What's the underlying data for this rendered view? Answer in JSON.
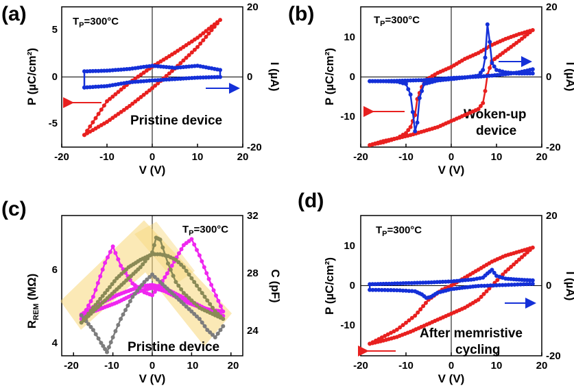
{
  "colors": {
    "red": "#e8201f",
    "blue": "#1430d8",
    "magenta": "#ef27ef",
    "gray": "#7d7d7d",
    "olive": "#8a8a56",
    "highlight": "#f7d77a"
  },
  "chart_data": [
    {
      "type": "line",
      "panel": "(a)",
      "tp_main": "T",
      "tp_sub": "P",
      "tp_tail": "=300°C",
      "xlabel": "V (V)",
      "ylabel_left": "P (µC/cm²)",
      "ylabel_right": "I (µA)",
      "xlim": [
        -20,
        20
      ],
      "ylim_left": [
        -7.5,
        7.5
      ],
      "ylim_right": [
        -20,
        20
      ],
      "xticks": [
        "-20",
        "-10",
        "0",
        "10",
        "20"
      ],
      "yticks_left": [
        "5",
        "0",
        "-5"
      ],
      "yticks_right": [
        "20",
        "0",
        "-20"
      ],
      "annotations": [
        "Pristine device"
      ],
      "series": [
        {
          "name": "P",
          "axis": "left",
          "color": "red",
          "x": [
            -15,
            -10,
            -5,
            0,
            5,
            10,
            15,
            10,
            5,
            0,
            -5,
            -10,
            -15
          ],
          "y": [
            -6.2,
            -4.8,
            -3.1,
            -1.2,
            0.9,
            3.2,
            6.1,
            4.2,
            2.6,
            1.1,
            -0.6,
            -2.6,
            -6.2
          ]
        },
        {
          "name": "I",
          "axis": "right",
          "color": "blue",
          "x": [
            -15,
            -10,
            -5,
            0,
            5,
            10,
            15,
            15,
            10,
            5,
            0,
            -5,
            -10,
            -15,
            -15
          ],
          "y": [
            -3.0,
            -2.6,
            -1.5,
            -1.0,
            -0.6,
            -0.2,
            0.0,
            2.0,
            3.2,
            2.6,
            3.2,
            2.3,
            1.8,
            1.6,
            -3.0
          ]
        }
      ]
    },
    {
      "type": "line",
      "panel": "(b)",
      "tp_main": "T",
      "tp_sub": "P",
      "tp_tail": "=300°C",
      "xlabel": "V (V)",
      "ylabel_left": "P (µC/cm²)",
      "ylabel_right": "I (µA)",
      "xlim": [
        -20,
        20
      ],
      "ylim_left": [
        -15,
        20
      ],
      "ylim_right": [
        -20,
        20
      ],
      "xticks": [
        "-20",
        "-10",
        "0",
        "10",
        "20"
      ],
      "yticks_left": [
        "10",
        "0",
        "-10"
      ],
      "yticks_right": [
        "20",
        "0",
        "-20"
      ],
      "annotations": [
        "Woken-up",
        "device"
      ],
      "series": [
        {
          "name": "P",
          "axis": "left",
          "color": "red",
          "x": [
            -18,
            -15,
            -12,
            -10,
            -9,
            -8,
            -7.5,
            -6,
            -3,
            0,
            3,
            6,
            9,
            12,
            15,
            18,
            15,
            12,
            9,
            8,
            7.5,
            7,
            6,
            3,
            0,
            -3,
            -6,
            -9,
            -12,
            -15,
            -18
          ],
          "y": [
            -14.5,
            -13.8,
            -12.8,
            -11.5,
            -10.0,
            -7.0,
            -3.0,
            1.5,
            3.5,
            5.0,
            7.0,
            8.5,
            10.5,
            12.0,
            13.2,
            14.2,
            11.5,
            9.0,
            6.5,
            3.0,
            -1.0,
            -4.0,
            -5.5,
            -7.0,
            -8.5,
            -10.0,
            -11.0,
            -12.0,
            -12.8,
            -13.5,
            -14.5
          ]
        },
        {
          "name": "I",
          "axis": "right",
          "color": "blue",
          "x": [
            -18,
            -15,
            -12,
            -10,
            -9,
            -8.5,
            -8,
            -7.5,
            -7,
            -6,
            -3,
            0,
            3,
            6,
            7,
            7.5,
            8,
            8.5,
            9,
            10,
            12,
            15,
            18,
            18,
            15,
            12,
            9,
            6,
            3,
            0,
            -3,
            -6,
            -9,
            -12,
            -15,
            -18,
            -18
          ],
          "y": [
            -1.2,
            -1.2,
            -1.3,
            -2.0,
            -5.0,
            -10.0,
            -15.5,
            -13.0,
            -6.0,
            -2.0,
            -1.0,
            -0.6,
            -0.2,
            0.4,
            2.0,
            5.5,
            15.0,
            10.0,
            4.0,
            2.0,
            1.3,
            1.0,
            1.0,
            2.2,
            1.3,
            0.8,
            0.4,
            0.1,
            -0.1,
            -0.3,
            -0.6,
            -0.9,
            -1.0,
            -1.1,
            -1.2,
            -1.2,
            -1.2
          ]
        }
      ]
    },
    {
      "type": "line",
      "panel": "(c)",
      "tp_main": "T",
      "tp_sub": "P",
      "tp_tail": "=300°C",
      "xlabel": "V (V)",
      "ylabel_left_main": "R",
      "ylabel_left_sub": "REM",
      "ylabel_left_tail": " (MΩ)",
      "ylabel_right": "C (pF)",
      "xlim": [
        -23,
        23
      ],
      "ylim_left": [
        3.8,
        7.6
      ],
      "ylim_right": [
        22.5,
        32
      ],
      "xticks": [
        "-20",
        "-10",
        "0",
        "10",
        "20"
      ],
      "yticks_left": [
        "6",
        "4"
      ],
      "yticks_right": [
        "32",
        "28",
        "24"
      ],
      "annotations": [
        "Pristine device"
      ],
      "series": [
        {
          "name": "C",
          "axis": "right",
          "color": "magenta",
          "x": [
            -18,
            -15,
            -12,
            -10,
            -8,
            -5,
            -2,
            0,
            2,
            5,
            8,
            10,
            12,
            15,
            18,
            15,
            12,
            9,
            6,
            3,
            0,
            -3,
            -6,
            -9,
            -12,
            -15,
            -18,
            -18,
            -15,
            -12,
            -9,
            -6,
            -3,
            0,
            3,
            6,
            9,
            12,
            15,
            18
          ],
          "y": [
            25.0,
            26.5,
            28.8,
            29.9,
            28.6,
            27.4,
            26.8,
            26.6,
            27.3,
            28.6,
            30.0,
            30.4,
            29.3,
            27.3,
            25.5,
            25.6,
            25.8,
            26.1,
            26.5,
            26.9,
            27.1,
            26.9,
            26.5,
            26.1,
            25.8,
            25.5,
            25.2,
            25.3,
            25.8,
            26.2,
            26.6,
            26.9,
            27.2,
            27.3,
            27.1,
            26.7,
            26.3,
            25.9,
            25.5,
            25.2
          ]
        },
        {
          "name": "R",
          "axis": "left",
          "color": "gray",
          "x": [
            -18,
            -15,
            -13,
            -11.5,
            -10,
            -8,
            -5,
            -2,
            0,
            2,
            5,
            8,
            10,
            12,
            14,
            16,
            18
          ],
          "y": [
            4.9,
            4.5,
            4.15,
            3.9,
            4.3,
            4.8,
            5.4,
            5.8,
            6.0,
            5.8,
            5.5,
            5.2,
            5.0,
            4.8,
            4.5,
            4.3,
            4.6
          ]
        },
        {
          "name": "R (loop)",
          "axis": "left",
          "color": "olive",
          "x": [
            -18,
            -15,
            -12,
            -9,
            -6,
            -3,
            0,
            1,
            2,
            4,
            6,
            8,
            10,
            12,
            14,
            16,
            18,
            16,
            14,
            12,
            10,
            8,
            6,
            4,
            2,
            0,
            -3,
            -6,
            -9,
            -12,
            -15,
            -18
          ],
          "y": [
            4.7,
            5.0,
            5.3,
            5.6,
            5.9,
            6.2,
            6.6,
            7.0,
            6.95,
            6.3,
            5.8,
            5.5,
            5.3,
            5.1,
            5.0,
            4.9,
            4.8,
            5.0,
            5.3,
            5.6,
            5.9,
            6.2,
            6.4,
            6.5,
            6.55,
            6.55,
            6.4,
            6.2,
            5.9,
            5.5,
            5.1,
            4.7
          ]
        }
      ]
    },
    {
      "type": "line",
      "panel": "(d)",
      "tp_main": "T",
      "tp_sub": "P",
      "tp_tail": "=300°C",
      "xlabel": "V (V)",
      "ylabel_left": "P (µC/cm²)",
      "ylabel_right": "I (µA)",
      "xlim": [
        -20,
        20
      ],
      "ylim_left": [
        -15,
        20
      ],
      "ylim_right": [
        -20,
        20
      ],
      "xticks": [
        "-20",
        "-10",
        "0",
        "10",
        "20"
      ],
      "yticks_left": [
        "10",
        "0",
        "-10"
      ],
      "yticks_right": [
        "20",
        "0",
        "-20"
      ],
      "annotations": [
        "After memristive",
        "cycling"
      ],
      "series": [
        {
          "name": "P",
          "axis": "left",
          "color": "red",
          "x": [
            -18,
            -12,
            -8,
            -5,
            -2,
            0,
            3,
            6,
            9,
            12,
            15,
            18,
            15,
            12,
            9,
            6,
            3,
            0,
            -3,
            -6,
            -9,
            -12,
            -15,
            -18
          ],
          "y": [
            -12.0,
            -8.5,
            -5.0,
            -1.0,
            1.5,
            2.5,
            4.5,
            6.5,
            8.5,
            10.0,
            11.0,
            12.0,
            9.0,
            6.0,
            2.5,
            -1.0,
            -3.0,
            -4.5,
            -6.0,
            -7.5,
            -9.0,
            -10.3,
            -11.2,
            -12.0
          ]
        },
        {
          "name": "I",
          "axis": "right",
          "color": "blue",
          "x": [
            -18,
            -12,
            -8,
            -6.5,
            -5.5,
            -4.5,
            -3,
            0,
            3,
            6,
            18,
            18,
            15,
            12,
            10,
            9,
            8,
            7,
            5,
            0,
            -5,
            -10,
            -15,
            -18,
            -18
          ],
          "y": [
            -1.2,
            -1.3,
            -1.6,
            -2.5,
            -3.5,
            -3.2,
            -2.0,
            -1.0,
            -0.5,
            -0.1,
            0.5,
            1.5,
            1.7,
            2.0,
            2.8,
            4.5,
            3.5,
            2.3,
            1.8,
            1.2,
            0.9,
            0.7,
            0.5,
            0.4,
            -1.2
          ]
        }
      ]
    }
  ]
}
